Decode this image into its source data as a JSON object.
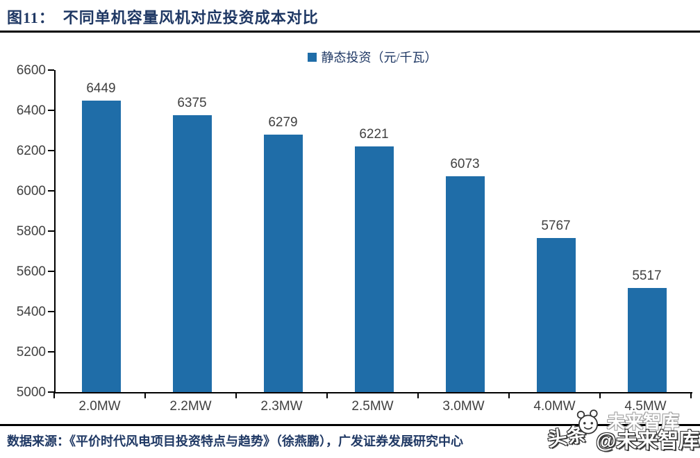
{
  "header": {
    "title": "图11：　不同单机容量风机对应投资成本对比"
  },
  "chart_data": {
    "type": "bar",
    "title": "不同单机容量风机对应投资成本对比",
    "legend": "静态投资（元/千瓦）",
    "legend_position": "top-center",
    "categories": [
      "2.0MW",
      "2.2MW",
      "2.3MW",
      "2.5MW",
      "3.0MW",
      "4.0MW",
      "4.5MW"
    ],
    "values": [
      6449,
      6375,
      6279,
      6221,
      6073,
      5767,
      5517
    ],
    "ylim": [
      5000,
      6600
    ],
    "ytick_step": 200,
    "yticks": [
      5000,
      5200,
      5400,
      5600,
      5800,
      6000,
      6200,
      6400,
      6600
    ],
    "grid": false,
    "value_labels_shown": true,
    "bar_color": "#1F6DA8",
    "axis_text_color": "#404040",
    "title_color": "#1F3864",
    "xlabel": "",
    "ylabel": ""
  },
  "footer": {
    "source": "数据来源：《平价时代风电项目投资特点与趋势》（徐燕鹏），广发证券发展研究中心"
  },
  "watermark": {
    "brand": "头条",
    "logo": "smiley-face-icon",
    "ghost": "未来智库",
    "account": "@未来智库"
  }
}
